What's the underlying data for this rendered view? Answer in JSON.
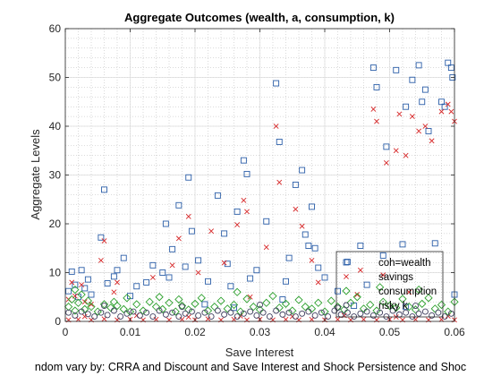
{
  "chart_data": {
    "type": "scatter",
    "title": "Aggregate Outcomes (wealth, a, consumption, k)",
    "xlabel": "Save Interest",
    "ylabel": "Aggregate Levels",
    "caption": "ndom vary by: CRRA and Discount and Save Interest and Shock Persistence and Shoc",
    "xlim": [
      0,
      0.06
    ],
    "ylim": [
      0,
      60
    ],
    "xticks": [
      0,
      0.01,
      0.02,
      0.03,
      0.04,
      0.05,
      0.06
    ],
    "xtick_labels": [
      "0",
      "0.01",
      "0.02",
      "0.03",
      "0.04",
      "0.05",
      "0.06"
    ],
    "yticks": [
      0,
      10,
      20,
      30,
      40,
      50,
      60
    ],
    "ytick_labels": [
      "0",
      "10",
      "20",
      "30",
      "40",
      "50",
      "60"
    ],
    "grid": true,
    "minor_grid": true,
    "legend_position": "bottom-right",
    "series": [
      {
        "name": "coh=wealth",
        "marker": "square",
        "color": "#2b5ea8",
        "points": [
          [
            0.0005,
            6.2
          ],
          [
            0.001,
            10.2
          ],
          [
            0.0015,
            7.5
          ],
          [
            0.002,
            5.0
          ],
          [
            0.0025,
            10.5
          ],
          [
            0.003,
            6.8
          ],
          [
            0.0035,
            8.6
          ],
          [
            0.004,
            5.5
          ],
          [
            0.0055,
            17.2
          ],
          [
            0.006,
            27.0
          ],
          [
            0.0065,
            7.8
          ],
          [
            0.0075,
            9.2
          ],
          [
            0.008,
            10.5
          ],
          [
            0.009,
            13.0
          ],
          [
            0.01,
            5.2
          ],
          [
            0.011,
            7.2
          ],
          [
            0.0125,
            8.0
          ],
          [
            0.0135,
            11.5
          ],
          [
            0.015,
            10.0
          ],
          [
            0.0155,
            20.0
          ],
          [
            0.016,
            9.0
          ],
          [
            0.0165,
            14.8
          ],
          [
            0.0175,
            23.8
          ],
          [
            0.0185,
            11.2
          ],
          [
            0.019,
            29.5
          ],
          [
            0.0195,
            18.5
          ],
          [
            0.0205,
            12.5
          ],
          [
            0.022,
            8.2
          ],
          [
            0.0235,
            25.8
          ],
          [
            0.0245,
            18.0
          ],
          [
            0.025,
            11.8
          ],
          [
            0.0255,
            7.2
          ],
          [
            0.0265,
            22.5
          ],
          [
            0.0275,
            33.0
          ],
          [
            0.028,
            30.2
          ],
          [
            0.0285,
            8.8
          ],
          [
            0.0295,
            10.5
          ],
          [
            0.031,
            20.5
          ],
          [
            0.0325,
            48.8
          ],
          [
            0.033,
            36.8
          ],
          [
            0.034,
            8.2
          ],
          [
            0.0345,
            13.0
          ],
          [
            0.0355,
            28.0
          ],
          [
            0.0365,
            31.0
          ],
          [
            0.037,
            17.8
          ],
          [
            0.0375,
            15.5
          ],
          [
            0.038,
            23.5
          ],
          [
            0.0385,
            15.0
          ],
          [
            0.039,
            11.0
          ],
          [
            0.04,
            9.0
          ],
          [
            0.042,
            6.2
          ],
          [
            0.0435,
            12.2
          ],
          [
            0.0455,
            15.5
          ],
          [
            0.0465,
            7.5
          ],
          [
            0.0475,
            52.0
          ],
          [
            0.048,
            48.0
          ],
          [
            0.049,
            13.5
          ],
          [
            0.0495,
            35.8
          ],
          [
            0.051,
            51.5
          ],
          [
            0.052,
            15.8
          ],
          [
            0.0525,
            44.0
          ],
          [
            0.0535,
            49.5
          ],
          [
            0.0545,
            52.5
          ],
          [
            0.055,
            45.0
          ],
          [
            0.0555,
            47.5
          ],
          [
            0.056,
            39.0
          ],
          [
            0.057,
            16.0
          ],
          [
            0.058,
            45.0
          ],
          [
            0.0585,
            44.0
          ],
          [
            0.059,
            53.0
          ],
          [
            0.0595,
            52.0
          ],
          [
            0.0597,
            50.0
          ],
          [
            0.06,
            5.5
          ],
          [
            0.0215,
            3.5
          ],
          [
            0.026,
            2.8
          ],
          [
            0.0335,
            4.5
          ],
          [
            0.0445,
            3.2
          ],
          [
            0.0525,
            3.0
          ]
        ]
      },
      {
        "name": "savings",
        "marker": "x",
        "color": "#d62728",
        "points": [
          [
            0.0005,
            4.5
          ],
          [
            0.001,
            8.0
          ],
          [
            0.0015,
            5.2
          ],
          [
            0.0025,
            7.5
          ],
          [
            0.003,
            4.0
          ],
          [
            0.004,
            3.5
          ],
          [
            0.0055,
            12.5
          ],
          [
            0.006,
            16.5
          ],
          [
            0.0075,
            6.0
          ],
          [
            0.008,
            8.0
          ],
          [
            0.0135,
            9.0
          ],
          [
            0.0165,
            11.5
          ],
          [
            0.0175,
            17.0
          ],
          [
            0.019,
            21.5
          ],
          [
            0.0205,
            10.0
          ],
          [
            0.0225,
            18.5
          ],
          [
            0.0245,
            12.0
          ],
          [
            0.0275,
            24.8
          ],
          [
            0.028,
            22.5
          ],
          [
            0.0265,
            19.8
          ],
          [
            0.0285,
            5.0
          ],
          [
            0.031,
            15.2
          ],
          [
            0.0325,
            40.0
          ],
          [
            0.033,
            28.5
          ],
          [
            0.0355,
            23.0
          ],
          [
            0.0365,
            19.5
          ],
          [
            0.038,
            12.5
          ],
          [
            0.039,
            8.0
          ],
          [
            0.0455,
            10.5
          ],
          [
            0.0475,
            43.5
          ],
          [
            0.048,
            41.0
          ],
          [
            0.049,
            9.5
          ],
          [
            0.0495,
            32.5
          ],
          [
            0.051,
            35.0
          ],
          [
            0.0515,
            42.5
          ],
          [
            0.0525,
            34.0
          ],
          [
            0.0535,
            42.0
          ],
          [
            0.0545,
            39.0
          ],
          [
            0.0555,
            40.0
          ],
          [
            0.0565,
            37.0
          ],
          [
            0.058,
            43.0
          ],
          [
            0.059,
            44.5
          ],
          [
            0.0595,
            43.0
          ],
          [
            0.06,
            41.0
          ],
          [
            0.045,
            5.5
          ],
          [
            0.053,
            6.0
          ],
          [
            0.0005,
            0.3
          ],
          [
            0.002,
            0.4
          ],
          [
            0.004,
            0.3
          ],
          [
            0.006,
            0.5
          ],
          [
            0.008,
            0.3
          ],
          [
            0.01,
            0.4
          ],
          [
            0.012,
            0.3
          ],
          [
            0.014,
            0.4
          ],
          [
            0.016,
            0.3
          ],
          [
            0.018,
            0.4
          ],
          [
            0.02,
            0.3
          ],
          [
            0.022,
            0.5
          ],
          [
            0.024,
            0.3
          ],
          [
            0.026,
            0.4
          ],
          [
            0.028,
            0.3
          ],
          [
            0.03,
            0.4
          ],
          [
            0.032,
            0.3
          ],
          [
            0.034,
            0.4
          ],
          [
            0.036,
            0.3
          ],
          [
            0.038,
            0.4
          ],
          [
            0.04,
            0.3
          ],
          [
            0.042,
            0.4
          ],
          [
            0.044,
            0.3
          ],
          [
            0.046,
            0.4
          ],
          [
            0.048,
            0.3
          ],
          [
            0.05,
            0.4
          ],
          [
            0.052,
            0.3
          ],
          [
            0.054,
            0.4
          ],
          [
            0.056,
            0.3
          ],
          [
            0.058,
            0.4
          ],
          [
            0.06,
            0.3
          ],
          [
            0.003,
            1.0
          ],
          [
            0.011,
            1.2
          ],
          [
            0.019,
            0.9
          ],
          [
            0.027,
            1.1
          ],
          [
            0.035,
            1.0
          ],
          [
            0.043,
            1.2
          ],
          [
            0.051,
            0.9
          ],
          [
            0.059,
            1.1
          ]
        ]
      },
      {
        "name": "consumption",
        "marker": "diamond",
        "color": "#2ca02c",
        "points": [
          [
            0.0005,
            3.0
          ],
          [
            0.001,
            4.5
          ],
          [
            0.0015,
            2.2
          ],
          [
            0.002,
            3.8
          ],
          [
            0.0025,
            5.5
          ],
          [
            0.003,
            2.5
          ],
          [
            0.0035,
            4.2
          ],
          [
            0.004,
            3.0
          ],
          [
            0.005,
            2.0
          ],
          [
            0.006,
            3.5
          ],
          [
            0.007,
            2.8
          ],
          [
            0.0075,
            4.0
          ],
          [
            0.008,
            3.2
          ],
          [
            0.009,
            2.5
          ],
          [
            0.0095,
            4.8
          ],
          [
            0.01,
            2.0
          ],
          [
            0.011,
            3.5
          ],
          [
            0.012,
            2.2
          ],
          [
            0.013,
            4.0
          ],
          [
            0.014,
            3.0
          ],
          [
            0.0145,
            5.0
          ],
          [
            0.015,
            2.5
          ],
          [
            0.016,
            3.8
          ],
          [
            0.017,
            2.0
          ],
          [
            0.0175,
            4.5
          ],
          [
            0.018,
            3.2
          ],
          [
            0.019,
            2.4
          ],
          [
            0.02,
            3.6
          ],
          [
            0.021,
            4.8
          ],
          [
            0.022,
            2.2
          ],
          [
            0.023,
            3.0
          ],
          [
            0.024,
            4.2
          ],
          [
            0.025,
            2.6
          ],
          [
            0.026,
            3.4
          ],
          [
            0.027,
            2.0
          ],
          [
            0.028,
            4.6
          ],
          [
            0.029,
            3.0
          ],
          [
            0.03,
            2.4
          ],
          [
            0.031,
            3.8
          ],
          [
            0.032,
            5.2
          ],
          [
            0.033,
            2.8
          ],
          [
            0.034,
            3.6
          ],
          [
            0.035,
            2.2
          ],
          [
            0.036,
            4.4
          ],
          [
            0.037,
            3.0
          ],
          [
            0.038,
            2.6
          ],
          [
            0.039,
            3.8
          ],
          [
            0.04,
            2.0
          ],
          [
            0.041,
            4.2
          ],
          [
            0.042,
            3.0
          ],
          [
            0.043,
            2.4
          ],
          [
            0.044,
            3.8
          ],
          [
            0.045,
            5.0
          ],
          [
            0.046,
            2.6
          ],
          [
            0.047,
            3.4
          ],
          [
            0.048,
            2.2
          ],
          [
            0.049,
            4.0
          ],
          [
            0.05,
            3.2
          ],
          [
            0.051,
            2.8
          ],
          [
            0.052,
            4.6
          ],
          [
            0.053,
            3.0
          ],
          [
            0.054,
            2.4
          ],
          [
            0.055,
            3.6
          ],
          [
            0.056,
            4.8
          ],
          [
            0.057,
            2.6
          ],
          [
            0.058,
            3.4
          ],
          [
            0.059,
            2.0
          ],
          [
            0.06,
            4.0
          ],
          [
            0.0485,
            7.0
          ],
          [
            0.0545,
            6.5
          ],
          [
            0.0015,
            6.5
          ],
          [
            0.0265,
            6.0
          ]
        ]
      },
      {
        "name": "risky k",
        "marker": "circle",
        "color": "#3f3f5f",
        "points": [
          [
            0.0005,
            1.8
          ],
          [
            0.0015,
            1.2
          ],
          [
            0.0025,
            2.0
          ],
          [
            0.0035,
            1.5
          ],
          [
            0.0045,
            1.0
          ],
          [
            0.0055,
            1.8
          ],
          [
            0.0065,
            1.3
          ],
          [
            0.0075,
            2.2
          ],
          [
            0.0085,
            1.0
          ],
          [
            0.0095,
            1.6
          ],
          [
            0.0105,
            2.0
          ],
          [
            0.0115,
            1.2
          ],
          [
            0.0125,
            1.8
          ],
          [
            0.0135,
            1.0
          ],
          [
            0.0145,
            2.2
          ],
          [
            0.0155,
            1.4
          ],
          [
            0.0165,
            1.8
          ],
          [
            0.0175,
            1.0
          ],
          [
            0.0185,
            1.6
          ],
          [
            0.0195,
            2.0
          ],
          [
            0.0205,
            1.2
          ],
          [
            0.0215,
            1.8
          ],
          [
            0.0225,
            1.0
          ],
          [
            0.0235,
            2.2
          ],
          [
            0.0245,
            1.4
          ],
          [
            0.0255,
            1.8
          ],
          [
            0.0265,
            1.0
          ],
          [
            0.0275,
            1.6
          ],
          [
            0.0285,
            2.0
          ],
          [
            0.0295,
            1.2
          ],
          [
            0.0305,
            1.8
          ],
          [
            0.0315,
            1.0
          ],
          [
            0.0325,
            2.2
          ],
          [
            0.0335,
            1.4
          ],
          [
            0.0345,
            1.8
          ],
          [
            0.0355,
            1.0
          ],
          [
            0.0365,
            1.6
          ],
          [
            0.0375,
            2.0
          ],
          [
            0.0385,
            1.2
          ],
          [
            0.0395,
            1.8
          ],
          [
            0.0405,
            1.0
          ],
          [
            0.0415,
            2.2
          ],
          [
            0.0425,
            1.4
          ],
          [
            0.0435,
            1.8
          ],
          [
            0.0445,
            1.0
          ],
          [
            0.0455,
            1.6
          ],
          [
            0.0465,
            2.0
          ],
          [
            0.0475,
            1.2
          ],
          [
            0.0485,
            1.8
          ],
          [
            0.0495,
            1.0
          ],
          [
            0.0505,
            2.2
          ],
          [
            0.0515,
            1.4
          ],
          [
            0.0525,
            1.8
          ],
          [
            0.0535,
            1.0
          ],
          [
            0.0545,
            1.6
          ],
          [
            0.0555,
            2.0
          ],
          [
            0.0565,
            1.2
          ],
          [
            0.0575,
            1.8
          ],
          [
            0.0585,
            1.0
          ],
          [
            0.0595,
            1.6
          ],
          [
            0.006,
            3.2
          ],
          [
            0.018,
            3.0
          ],
          [
            0.03,
            3.4
          ],
          [
            0.042,
            2.8
          ],
          [
            0.054,
            3.2
          ]
        ]
      }
    ]
  }
}
